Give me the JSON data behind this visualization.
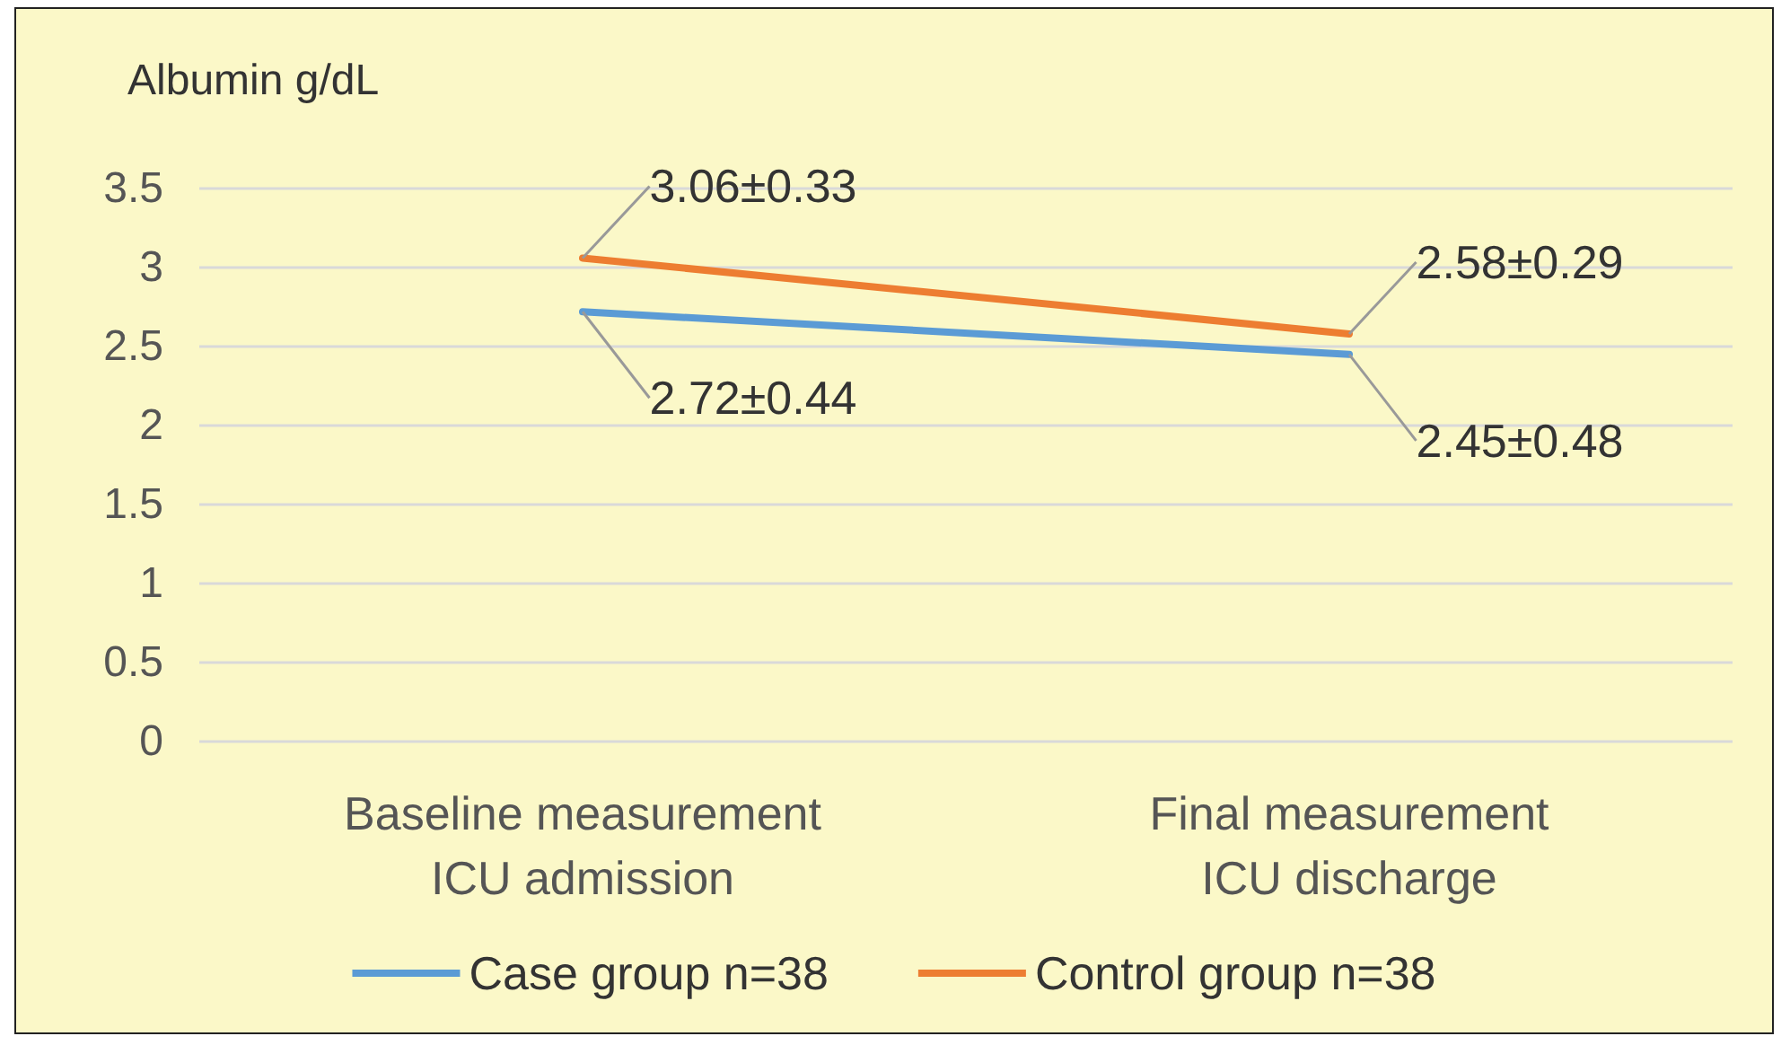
{
  "chart_data": {
    "type": "line",
    "ylabel": "Albumin g/dL",
    "categories": [
      "Baseline measurement\nICU admission",
      "Final measurement\nICU discharge"
    ],
    "series": [
      {
        "name": "Case group n=38",
        "color": "#5b9bd5",
        "values": [
          2.72,
          2.45
        ],
        "value_labels": [
          "2.72±0.44",
          "2.45±0.48"
        ]
      },
      {
        "name": "Control group n=38",
        "color": "#ed7d31",
        "values": [
          3.06,
          2.58
        ],
        "value_labels": [
          "3.06±0.33",
          "2.58±0.29"
        ]
      }
    ],
    "ylim": [
      0,
      3.5
    ],
    "yticks": [
      0,
      0.5,
      1,
      1.5,
      2,
      2.5,
      3,
      3.5
    ],
    "grid": "y",
    "legend": "bottom",
    "marker": "none",
    "line_style": "solid"
  }
}
